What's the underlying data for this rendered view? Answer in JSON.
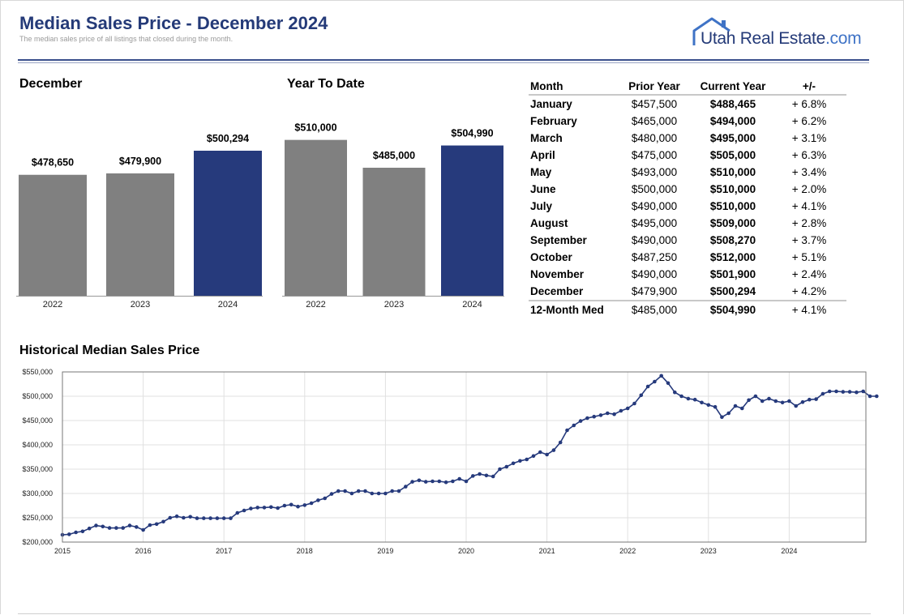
{
  "header": {
    "title": "Median Sales Price - December 2024",
    "subtitle": "The median sales price of all listings that closed during the month.",
    "logo_main": "Utah Real Estate",
    "logo_domain": ".com"
  },
  "colors": {
    "accent": "#243a78",
    "bar_gray": "#808080",
    "bar_blue": "#263a7c",
    "line": "#263a7c"
  },
  "chart_data": [
    {
      "type": "bar",
      "title": "December",
      "categories": [
        "2022",
        "2023",
        "2024"
      ],
      "values": [
        478650,
        479900,
        500294
      ],
      "labels": [
        "$478,650",
        "$479,900",
        "$500,294"
      ],
      "highlight_last": true
    },
    {
      "type": "bar",
      "title": "Year To Date",
      "categories": [
        "2022",
        "2023",
        "2024"
      ],
      "values": [
        510000,
        485000,
        504990
      ],
      "labels": [
        "$510,000",
        "$485,000",
        "$504,990"
      ],
      "highlight_last": true
    },
    {
      "type": "table",
      "columns": [
        "Month",
        "Prior Year",
        "Current Year",
        "+/-"
      ],
      "rows": [
        [
          "January",
          "$457,500",
          "$488,465",
          "+ 6.8%"
        ],
        [
          "February",
          "$465,000",
          "$494,000",
          "+ 6.2%"
        ],
        [
          "March",
          "$480,000",
          "$495,000",
          "+ 3.1%"
        ],
        [
          "April",
          "$475,000",
          "$505,000",
          "+ 6.3%"
        ],
        [
          "May",
          "$493,000",
          "$510,000",
          "+ 3.4%"
        ],
        [
          "June",
          "$500,000",
          "$510,000",
          "+ 2.0%"
        ],
        [
          "July",
          "$490,000",
          "$510,000",
          "+ 4.1%"
        ],
        [
          "August",
          "$495,000",
          "$509,000",
          "+ 2.8%"
        ],
        [
          "September",
          "$490,000",
          "$508,270",
          "+ 3.7%"
        ],
        [
          "October",
          "$487,250",
          "$512,000",
          "+ 5.1%"
        ],
        [
          "November",
          "$490,000",
          "$501,900",
          "+ 2.4%"
        ],
        [
          "December",
          "$479,900",
          "$500,294",
          "+ 4.2%"
        ]
      ],
      "total": [
        "12-Month Med",
        "$485,000",
        "$504,990",
        "+ 4.1%"
      ]
    },
    {
      "type": "line",
      "title": "Historical Median Sales Price",
      "ylim": [
        200000,
        550000
      ],
      "y_ticks": [
        200000,
        250000,
        300000,
        350000,
        400000,
        450000,
        500000,
        550000
      ],
      "y_tick_labels": [
        "$200,000",
        "$250,000",
        "$300,000",
        "$350,000",
        "$400,000",
        "$450,000",
        "$500,000",
        "$550,000"
      ],
      "x_start": 2015,
      "x_ticks": [
        "2015",
        "2016",
        "2017",
        "2018",
        "2019",
        "2020",
        "2021",
        "2022",
        "2023",
        "2024"
      ],
      "grid": true,
      "values": [
        215000,
        216000,
        220000,
        222000,
        228000,
        234000,
        232000,
        229000,
        229000,
        229000,
        234000,
        231000,
        225000,
        235000,
        237000,
        242000,
        250000,
        253000,
        250000,
        252000,
        249000,
        249000,
        249000,
        249000,
        249000,
        249000,
        260000,
        265000,
        269000,
        271000,
        271000,
        272000,
        270000,
        275000,
        277000,
        273000,
        276000,
        280000,
        286000,
        290000,
        299000,
        305000,
        305000,
        300000,
        305000,
        305000,
        300000,
        300000,
        300000,
        305000,
        305000,
        314000,
        324000,
        327000,
        324000,
        325000,
        325000,
        323000,
        325000,
        330000,
        325000,
        336000,
        340000,
        337000,
        335000,
        350000,
        355000,
        362000,
        367000,
        370000,
        377000,
        385000,
        380000,
        389000,
        405000,
        430000,
        440000,
        449000,
        455000,
        458000,
        461000,
        465000,
        463000,
        470000,
        475000,
        485000,
        502000,
        520000,
        530000,
        542000,
        527000,
        508000,
        500000,
        495000,
        493000,
        487000,
        482000,
        478000,
        457000,
        465000,
        480000,
        475000,
        492000,
        500000,
        490000,
        495000,
        490000,
        487000,
        490000,
        480000,
        488000,
        493000,
        494000,
        505000,
        510000,
        510000,
        509000,
        509000,
        508000,
        510000,
        500000,
        500000
      ]
    }
  ]
}
